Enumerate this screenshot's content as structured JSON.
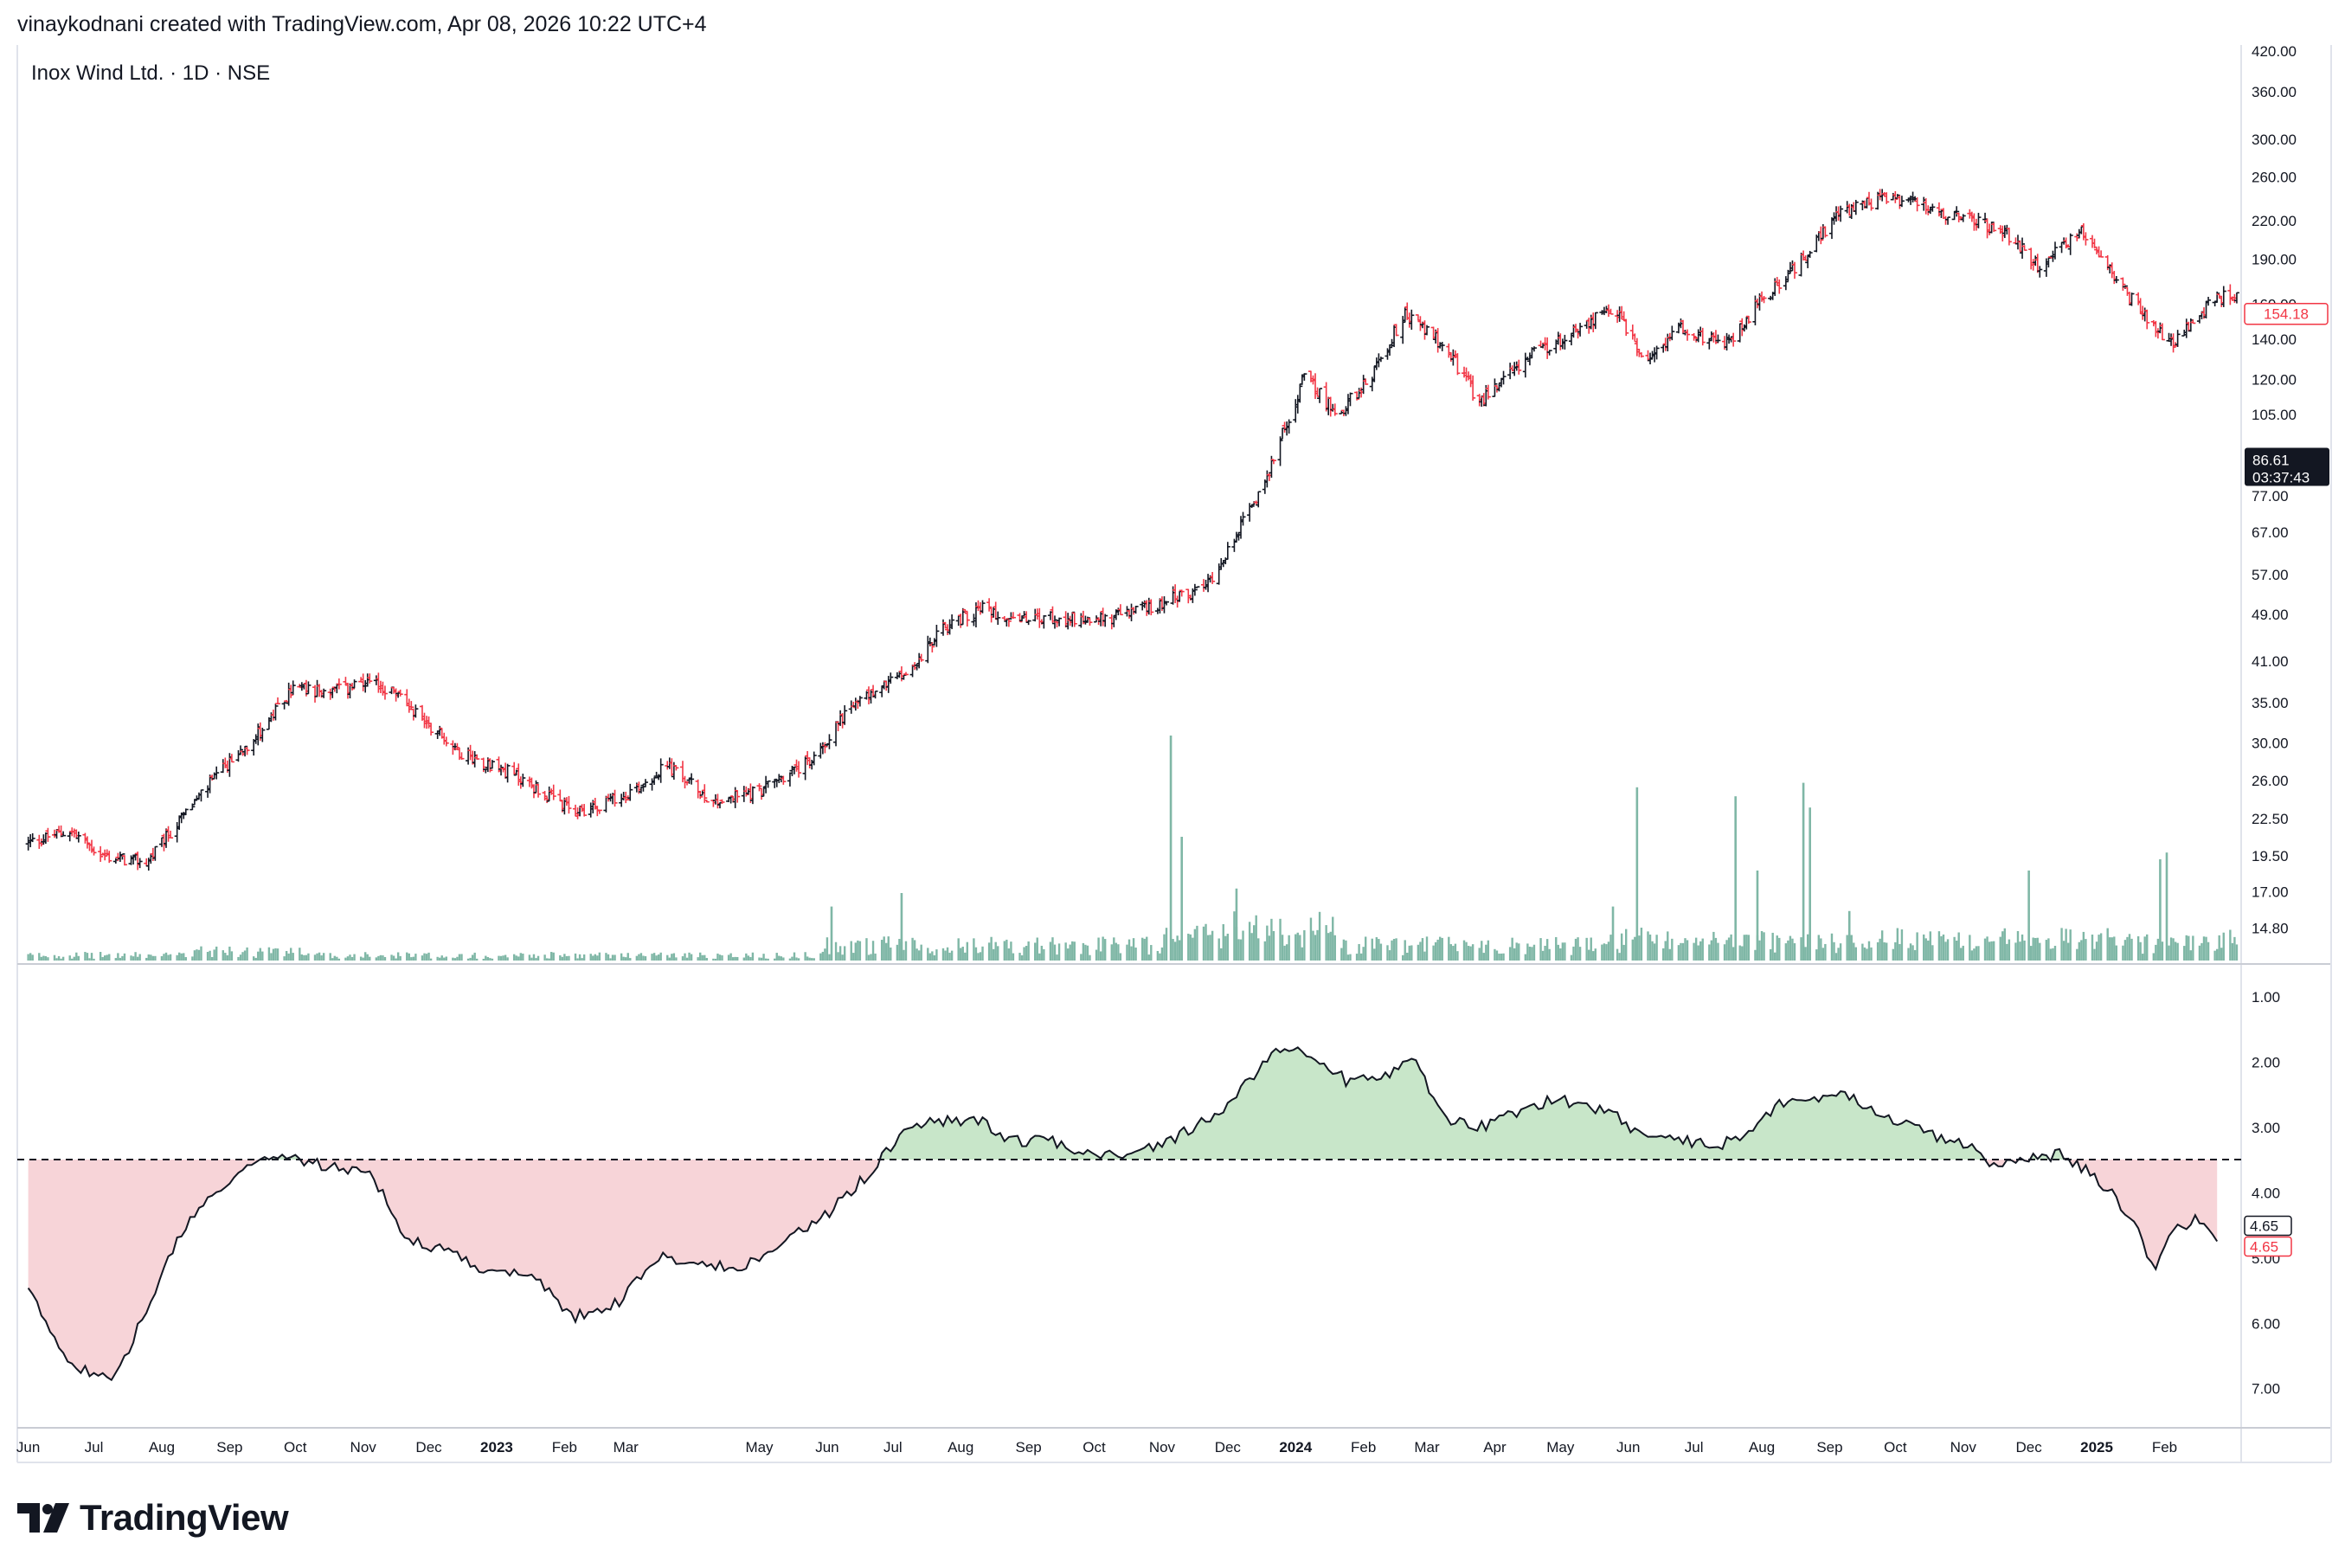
{
  "header": {
    "caption": "vinaykodnani created with TradingView.com, Apr 08, 2026 10:22 UTC+4"
  },
  "logo": {
    "wordmark": "TradingView",
    "icon": "tradingview-logo-icon"
  },
  "colors": {
    "up_bar": "#131722",
    "down_bar": "#f23645",
    "volume": "#7fb7a6",
    "ratio_line": "#131722",
    "fill_above": "#c8e6c9",
    "fill_below": "#f7d4d8",
    "price_label_red": "#f23645",
    "dark_label_bg": "#131722"
  },
  "chart_data": [
    {
      "type": "ohlc",
      "title": "Inox Wind Ltd. · 1D · NSE",
      "y_scale": "log",
      "ylim": [
        13.0,
        430.0
      ],
      "y_ticks": [
        "420.00",
        "360.00",
        "300.00",
        "260.00",
        "220.00",
        "190.00",
        "160.00",
        "140.00",
        "120.00",
        "105.00",
        "90.00",
        "77.00",
        "67.00",
        "57.00",
        "49.00",
        "41.00",
        "35.00",
        "30.00",
        "26.00",
        "22.50",
        "19.50",
        "17.00",
        "14.80"
      ],
      "last_price_label": "154.18",
      "countdown_label_price": "86.61",
      "countdown_label_time": "03:37:43",
      "x_labels": [
        "Jun",
        "Jul",
        "Aug",
        "Sep",
        "Oct",
        "Nov",
        "Dec",
        "2023",
        "Feb",
        "Mar",
        "May",
        "Jun",
        "Jul",
        "Aug",
        "Sep",
        "Oct",
        "Nov",
        "Dec",
        "2024",
        "Feb",
        "Mar",
        "Apr",
        "May",
        "Jun",
        "Jul",
        "Aug",
        "Sep",
        "Oct",
        "Nov",
        "Dec",
        "2025",
        "Feb"
      ],
      "x_labels_bold": [
        "2023",
        "2024",
        "2025"
      ],
      "close_path_dates": [
        "2022-06-01",
        "2022-06-20",
        "2022-07-05",
        "2022-07-25",
        "2022-08-20",
        "2022-09-20",
        "2022-09-30",
        "2022-10-15",
        "2022-11-05",
        "2022-11-15",
        "2022-12-15",
        "2023-01-10",
        "2023-02-05",
        "2023-02-28",
        "2023-03-20",
        "2023-04-10",
        "2023-04-30",
        "2023-05-25",
        "2023-06-10",
        "2023-06-25",
        "2023-07-10",
        "2023-07-25",
        "2023-08-10",
        "2023-08-30",
        "2023-09-20",
        "2023-10-05",
        "2023-10-30",
        "2023-11-20",
        "2023-12-05",
        "2023-12-20",
        "2024-01-05",
        "2024-01-20",
        "2024-02-05",
        "2024-02-20",
        "2024-03-10",
        "2024-03-25",
        "2024-04-15",
        "2024-05-05",
        "2024-05-25",
        "2024-06-10",
        "2024-06-25",
        "2024-07-15",
        "2024-07-30",
        "2024-08-15",
        "2024-09-05",
        "2024-09-25",
        "2024-10-10",
        "2024-10-30",
        "2024-11-20",
        "2024-12-05",
        "2024-12-25",
        "2025-01-10",
        "2025-01-25",
        "2025-02-05",
        "2025-02-25"
      ],
      "close_path_values": [
        20.5,
        21.5,
        19.5,
        19.0,
        25.0,
        33.0,
        37.0,
        36.5,
        37.5,
        36.5,
        29.0,
        26.5,
        23.0,
        24.5,
        27.5,
        24.0,
        25.0,
        28.0,
        34.0,
        37.0,
        40.0,
        47.0,
        50.0,
        48.0,
        48.5,
        48.0,
        51.0,
        54.0,
        66.0,
        85.0,
        122.0,
        105.0,
        122.0,
        155.0,
        135.0,
        110.0,
        130.0,
        142.0,
        158.0,
        128.0,
        148.0,
        136.0,
        160.0,
        182.0,
        225.0,
        240.0,
        235.0,
        222.0,
        212.0,
        185.0,
        212.0,
        175.0,
        150.0,
        138.0,
        165.0
      ]
    },
    {
      "type": "bar",
      "title": "Volume",
      "spikes": [
        {
          "date": "2023-06-03",
          "rel": 0.24
        },
        {
          "date": "2023-07-05",
          "rel": 0.3
        },
        {
          "date": "2023-11-05",
          "rel": 1.0
        },
        {
          "date": "2023-11-10",
          "rel": 0.55
        },
        {
          "date": "2023-12-05",
          "rel": 0.32
        },
        {
          "date": "2024-05-25",
          "rel": 0.24
        },
        {
          "date": "2024-06-05",
          "rel": 0.77
        },
        {
          "date": "2024-07-20",
          "rel": 0.73
        },
        {
          "date": "2024-07-30",
          "rel": 0.4
        },
        {
          "date": "2024-08-20",
          "rel": 0.79
        },
        {
          "date": "2024-08-23",
          "rel": 0.68
        },
        {
          "date": "2024-09-10",
          "rel": 0.22
        },
        {
          "date": "2024-12-01",
          "rel": 0.4
        },
        {
          "date": "2025-01-30",
          "rel": 0.45
        },
        {
          "date": "2025-02-02",
          "rel": 0.48
        }
      ]
    },
    {
      "type": "area",
      "title": "Ratio",
      "y_ticks": [
        "1.00",
        "2.00",
        "3.00",
        "4.00",
        "5.00",
        "6.00",
        "7.00"
      ],
      "ylim": [
        0.6,
        7.6
      ],
      "y_inverted": true,
      "baseline": 3.49,
      "current_value_labels": [
        "4.65",
        "4.65"
      ],
      "dates": [
        "2022-06-01",
        "2022-06-20",
        "2022-07-10",
        "2022-07-25",
        "2022-08-10",
        "2022-08-25",
        "2022-09-10",
        "2022-09-25",
        "2022-10-15",
        "2022-11-05",
        "2022-11-20",
        "2022-12-10",
        "2022-12-25",
        "2023-01-15",
        "2023-02-05",
        "2023-02-25",
        "2023-03-15",
        "2023-03-30",
        "2023-04-20",
        "2023-05-15",
        "2023-05-30",
        "2023-06-20",
        "2023-07-05",
        "2023-07-20",
        "2023-08-10",
        "2023-08-25",
        "2023-09-10",
        "2023-09-30",
        "2023-10-20",
        "2023-11-10",
        "2023-11-25",
        "2023-12-05",
        "2023-12-20",
        "2024-01-05",
        "2024-01-25",
        "2024-02-10",
        "2024-02-25",
        "2024-03-10",
        "2024-03-25",
        "2024-04-10",
        "2024-04-25",
        "2024-05-10",
        "2024-05-25",
        "2024-06-10",
        "2024-06-25",
        "2024-07-10",
        "2024-07-25",
        "2024-08-10",
        "2024-08-25",
        "2024-09-10",
        "2024-09-25",
        "2024-10-10",
        "2024-10-25",
        "2024-11-05",
        "2024-11-15",
        "2024-11-30",
        "2024-12-15",
        "2024-12-30",
        "2025-01-10",
        "2025-01-20",
        "2025-01-28",
        "2025-02-05",
        "2025-02-15",
        "2025-02-25"
      ],
      "values": [
        5.5,
        6.6,
        6.9,
        5.8,
        4.6,
        4.0,
        3.6,
        3.4,
        3.6,
        3.7,
        4.7,
        4.9,
        5.2,
        5.2,
        5.9,
        5.7,
        5.0,
        5.0,
        5.2,
        4.7,
        4.4,
        3.7,
        3.1,
        2.9,
        2.9,
        3.2,
        3.2,
        3.4,
        3.4,
        3.1,
        2.8,
        2.5,
        1.9,
        1.8,
        2.3,
        2.2,
        2.0,
        2.9,
        3.0,
        2.8,
        2.6,
        2.6,
        2.8,
        3.2,
        3.2,
        3.3,
        3.1,
        2.6,
        2.6,
        2.5,
        2.8,
        3.0,
        3.2,
        3.3,
        3.6,
        3.5,
        3.4,
        3.7,
        4.1,
        4.6,
        5.2,
        4.6,
        4.4,
        4.7
      ]
    }
  ]
}
